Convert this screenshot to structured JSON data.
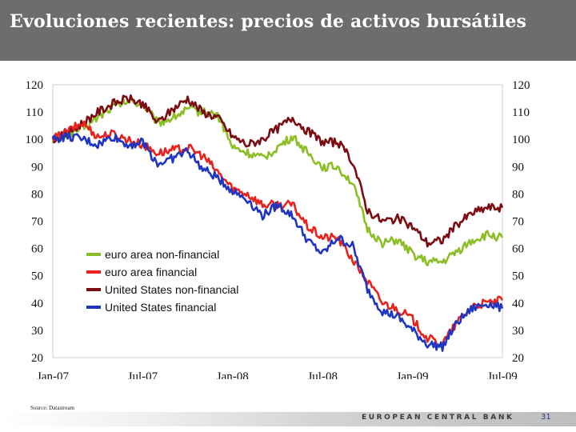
{
  "slide": {
    "title": "Evoluciones recientes: precios de activos bursátiles",
    "source": "Source: Datastream",
    "bank_name": "EUROPEAN CENTRAL BANK",
    "page_number": "31"
  },
  "chart_data": {
    "type": "line",
    "title": "",
    "xlabel": "",
    "ylabel": "",
    "ylim": [
      20,
      120
    ],
    "yticks": [
      120,
      110,
      100,
      90,
      80,
      70,
      60,
      50,
      40,
      30,
      20
    ],
    "xticks": [
      "Jan-07",
      "Jul-07",
      "Jan-08",
      "Jul-08",
      "Jan-09",
      "Jul-09"
    ],
    "grid": false,
    "legend_position": "lower-left",
    "x": [
      "Jan-07",
      "Feb-07",
      "Mar-07",
      "Apr-07",
      "May-07",
      "Jun-07",
      "Jul-07",
      "Aug-07",
      "Sep-07",
      "Oct-07",
      "Nov-07",
      "Dec-07",
      "Jan-08",
      "Feb-08",
      "Mar-08",
      "Apr-08",
      "May-08",
      "Jun-08",
      "Jul-08",
      "Aug-08",
      "Sep-08",
      "Oct-08",
      "Nov-08",
      "Dec-08",
      "Jan-09",
      "Feb-09",
      "Mar-09",
      "Apr-09",
      "May-09",
      "Jun-09",
      "Jul-09"
    ],
    "series": [
      {
        "name": "euro area non-financial",
        "color": "#8cbf26",
        "values": [
          100,
          102,
          104,
          108,
          112,
          114,
          113,
          106,
          108,
          111,
          110,
          109,
          97,
          95,
          93,
          97,
          101,
          95,
          90,
          90,
          84,
          67,
          62,
          63,
          58,
          55,
          55,
          59,
          63,
          65,
          64
        ]
      },
      {
        "name": "euro area financial",
        "color": "#e8221c",
        "values": [
          100,
          103,
          106,
          101,
          102,
          100,
          98,
          95,
          96,
          97,
          94,
          88,
          82,
          80,
          76,
          76,
          76,
          68,
          64,
          64,
          56,
          48,
          40,
          38,
          34,
          27,
          25,
          33,
          39,
          40,
          41
        ]
      },
      {
        "name": "United States non-financial",
        "color": "#7b0c12",
        "values": [
          100,
          102,
          106,
          110,
          113,
          115,
          113,
          106,
          111,
          115,
          110,
          108,
          101,
          98,
          100,
          104,
          108,
          103,
          99,
          99,
          92,
          74,
          70,
          71,
          68,
          62,
          63,
          69,
          73,
          75,
          75
        ]
      },
      {
        "name": "United States financial",
        "color": "#1f36c2",
        "values": [
          100,
          101,
          100,
          98,
          101,
          98,
          99,
          91,
          93,
          96,
          89,
          86,
          81,
          78,
          72,
          76,
          72,
          63,
          58,
          64,
          61,
          45,
          37,
          35,
          30,
          25,
          24,
          33,
          38,
          40,
          38
        ]
      }
    ]
  }
}
